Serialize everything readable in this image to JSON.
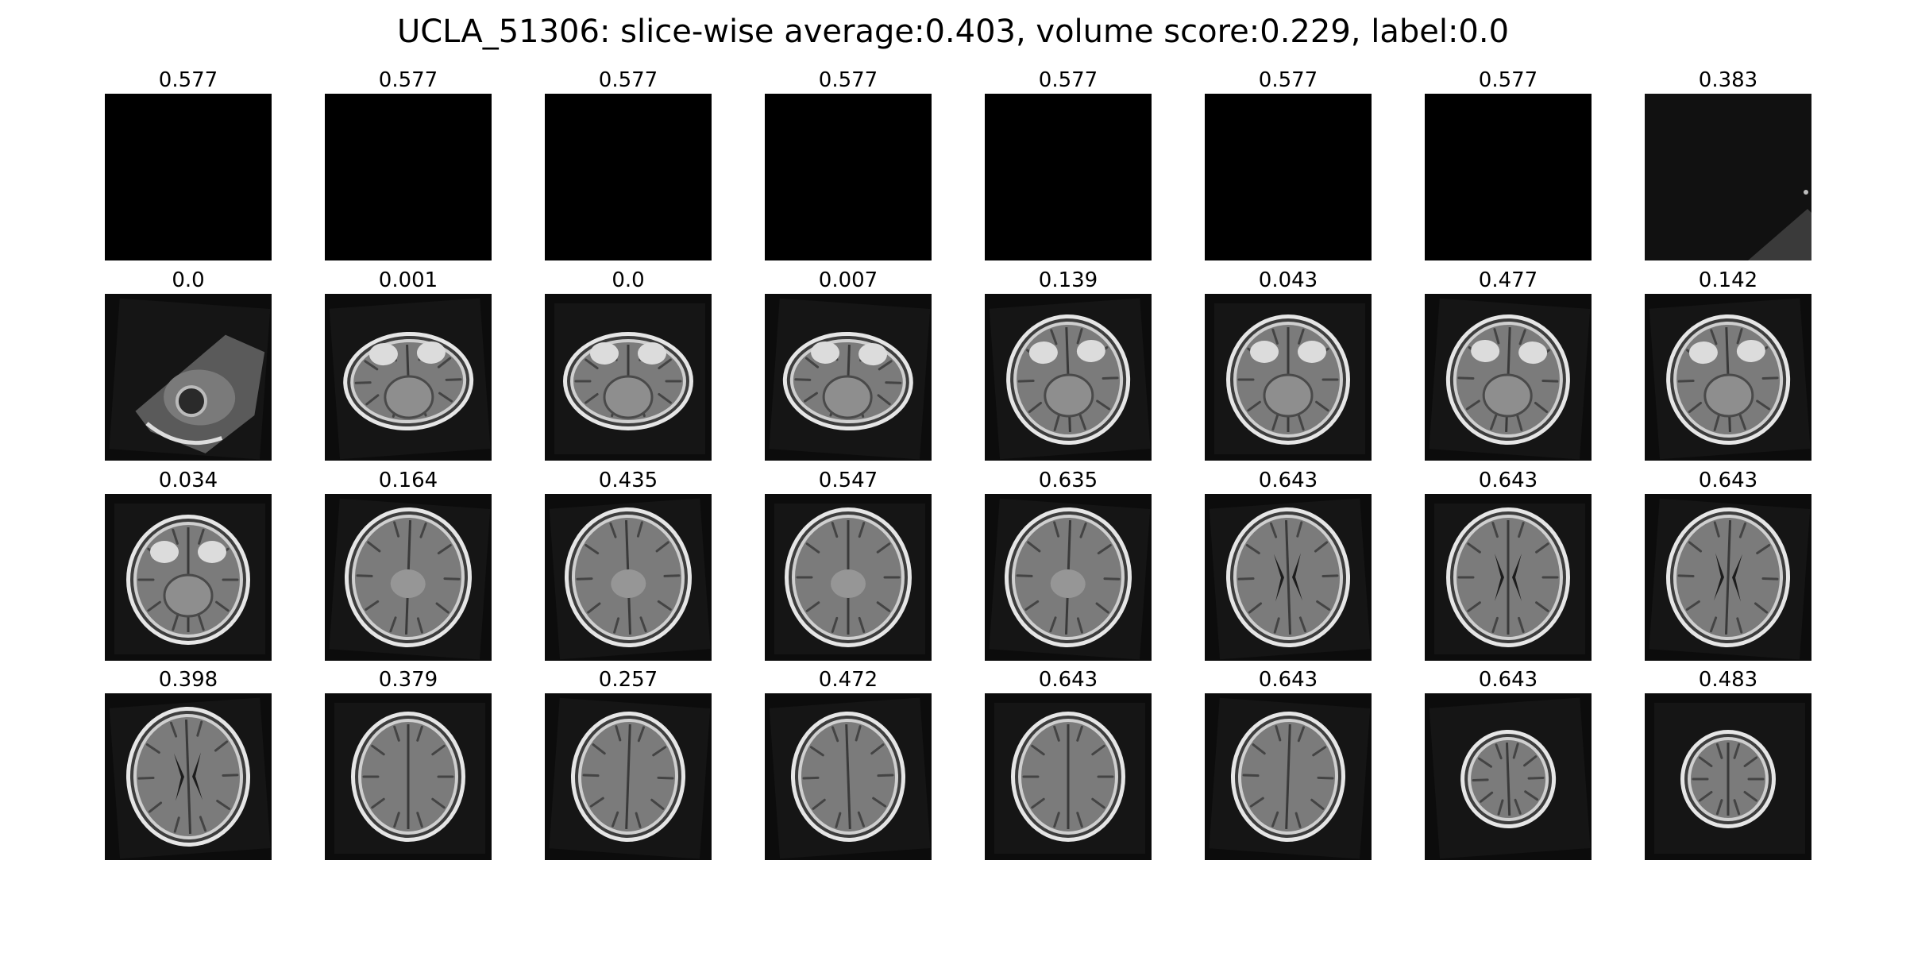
{
  "figure": {
    "subject_id": "UCLA_51306",
    "title": "UCLA_51306: slice-wise average:0.403, volume score:0.229, label:0.0",
    "slice_average": 0.403,
    "volume_score": 0.229,
    "label": 0.0
  },
  "grid": {
    "rows": 4,
    "cols": 8
  },
  "slices": [
    {
      "score": "0.577",
      "kind": "blank"
    },
    {
      "score": "0.577",
      "kind": "blank"
    },
    {
      "score": "0.577",
      "kind": "blank"
    },
    {
      "score": "0.577",
      "kind": "blank"
    },
    {
      "score": "0.577",
      "kind": "blank"
    },
    {
      "score": "0.577",
      "kind": "blank"
    },
    {
      "score": "0.577",
      "kind": "blank"
    },
    {
      "score": "0.383",
      "kind": "corner-fragment"
    },
    {
      "score": "0.0",
      "kind": "neck"
    },
    {
      "score": "0.001",
      "kind": "skull-base"
    },
    {
      "score": "0.0",
      "kind": "skull-base"
    },
    {
      "score": "0.007",
      "kind": "skull-base"
    },
    {
      "score": "0.139",
      "kind": "cerebellum"
    },
    {
      "score": "0.043",
      "kind": "cerebellum"
    },
    {
      "score": "0.477",
      "kind": "cerebellum"
    },
    {
      "score": "0.142",
      "kind": "cerebellum"
    },
    {
      "score": "0.034",
      "kind": "cerebellum"
    },
    {
      "score": "0.164",
      "kind": "brain"
    },
    {
      "score": "0.435",
      "kind": "brain"
    },
    {
      "score": "0.547",
      "kind": "brain"
    },
    {
      "score": "0.635",
      "kind": "brain"
    },
    {
      "score": "0.643",
      "kind": "ventricles"
    },
    {
      "score": "0.643",
      "kind": "ventricles"
    },
    {
      "score": "0.643",
      "kind": "ventricles"
    },
    {
      "score": "0.398",
      "kind": "ventricles"
    },
    {
      "score": "0.379",
      "kind": "upper-brain"
    },
    {
      "score": "0.257",
      "kind": "upper-brain"
    },
    {
      "score": "0.472",
      "kind": "upper-brain"
    },
    {
      "score": "0.643",
      "kind": "upper-brain"
    },
    {
      "score": "0.643",
      "kind": "upper-brain"
    },
    {
      "score": "0.643",
      "kind": "vertex"
    },
    {
      "score": "0.483",
      "kind": "vertex"
    }
  ]
}
